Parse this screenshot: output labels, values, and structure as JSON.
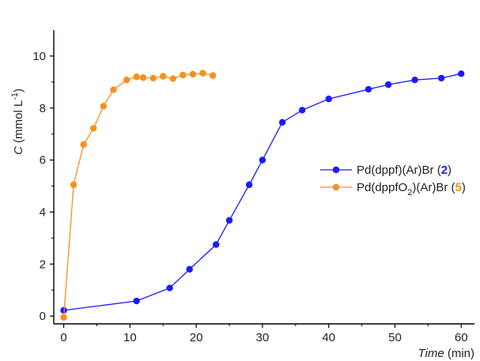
{
  "chart_data": {
    "type": "line",
    "title": "",
    "xlabel": {
      "italic": "Time",
      "unit": " (min)"
    },
    "ylabel": {
      "italic": "C",
      "unit": " (mmol L",
      "sup": "-1",
      "close": ")"
    },
    "xlim": [
      -1.5,
      62
    ],
    "ylim": [
      -0.3,
      11
    ],
    "xticks": [
      0,
      10,
      20,
      30,
      40,
      50,
      60
    ],
    "yticks": [
      0,
      2,
      4,
      6,
      8,
      10
    ],
    "grid": false,
    "legend_position": "right",
    "series": [
      {
        "id": "s2",
        "label_main": "Pd(dppf)(Ar)Br (",
        "label_num": "2",
        "label_close": ")",
        "color": "#1a1aff",
        "num_color": "#1a1aff",
        "points": [
          [
            0,
            0.22
          ],
          [
            11,
            0.58
          ],
          [
            16,
            1.08
          ],
          [
            19,
            1.8
          ],
          [
            23,
            2.75
          ],
          [
            25,
            3.68
          ],
          [
            28,
            5.05
          ],
          [
            30,
            6.0
          ],
          [
            33,
            7.45
          ],
          [
            36,
            7.92
          ],
          [
            40,
            8.35
          ],
          [
            46,
            8.72
          ],
          [
            49,
            8.9
          ],
          [
            53,
            9.08
          ],
          [
            57,
            9.15
          ],
          [
            60,
            9.32
          ]
        ]
      },
      {
        "id": "s5",
        "label_main": "Pd(dppfO",
        "label_sub": "2",
        "label_mid": ")(Ar)Br (",
        "label_num": "5",
        "label_close": ")",
        "color": "#f7901e",
        "num_color": "#f7901e",
        "points": [
          [
            0,
            -0.05
          ],
          [
            1.5,
            5.05
          ],
          [
            3,
            6.6
          ],
          [
            4.5,
            7.22
          ],
          [
            6,
            8.07
          ],
          [
            7.5,
            8.7
          ],
          [
            9.5,
            9.08
          ],
          [
            11,
            9.2
          ],
          [
            12,
            9.17
          ],
          [
            13.5,
            9.15
          ],
          [
            15,
            9.22
          ],
          [
            16.5,
            9.13
          ],
          [
            18,
            9.27
          ],
          [
            19.5,
            9.3
          ],
          [
            21,
            9.34
          ],
          [
            22.5,
            9.25
          ]
        ]
      }
    ]
  }
}
